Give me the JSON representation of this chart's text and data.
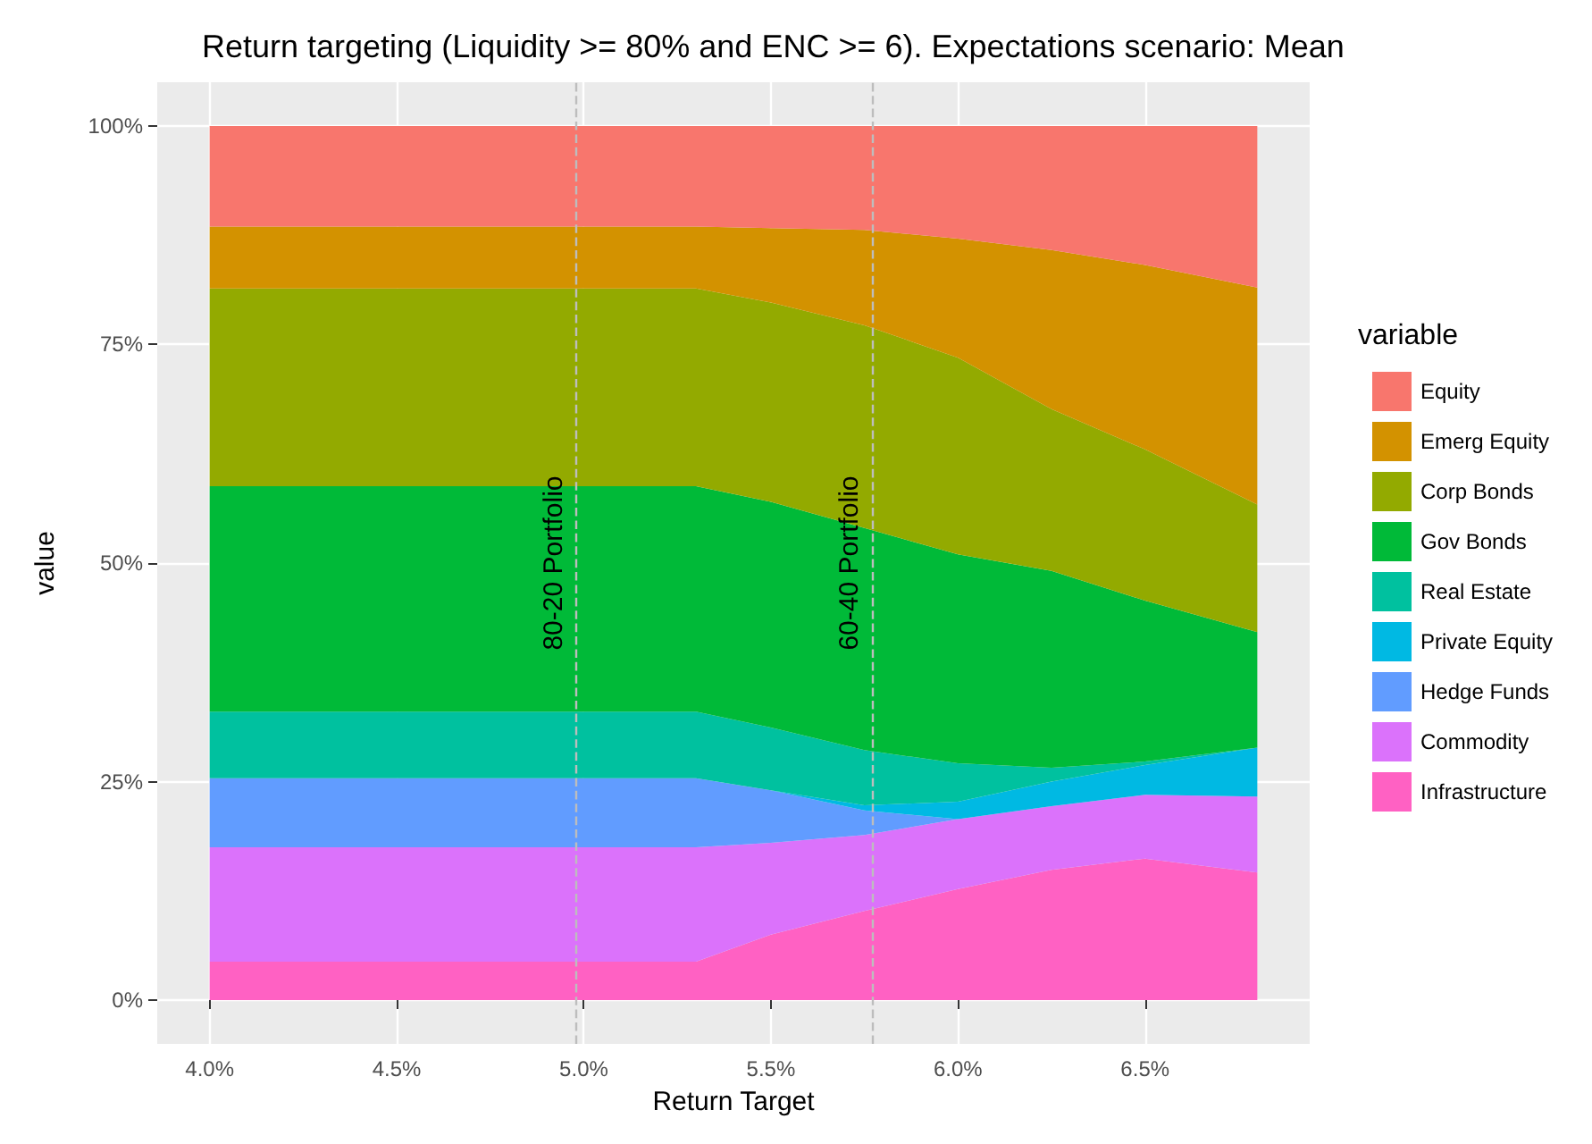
{
  "chart_data": {
    "type": "area",
    "stacked": true,
    "title": "Return targeting (Liquidity >= 80% and ENC >= 6). Expectations scenario: Mean",
    "xlabel": "Return Target",
    "ylabel": "value",
    "legend_title": "variable",
    "legend": "right",
    "grid": true,
    "x": [
      4.0,
      5.3,
      5.5,
      5.75,
      6.0,
      6.25,
      6.5,
      6.8
    ],
    "series": [
      {
        "name": "Infrastructure",
        "color": "#ff61c3",
        "values": [
          4.4,
          4.4,
          7.5,
          10.2,
          12.7,
          14.9,
          16.2,
          14.6
        ]
      },
      {
        "name": "Commodity",
        "color": "#db72fb",
        "values": [
          13.1,
          13.1,
          10.5,
          8.7,
          8.0,
          7.3,
          7.3,
          8.7
        ]
      },
      {
        "name": "Hedge Funds",
        "color": "#619cff",
        "values": [
          7.9,
          7.9,
          6.0,
          2.8,
          0,
          0,
          0,
          0
        ]
      },
      {
        "name": "Private Equity",
        "color": "#00b9e3",
        "values": [
          0,
          0,
          0,
          0.6,
          2.0,
          2.8,
          3.4,
          5.6
        ]
      },
      {
        "name": "Real Estate",
        "color": "#00c19f",
        "values": [
          7.6,
          7.6,
          7.2,
          6.3,
          4.4,
          1.6,
          0.4,
          0
        ]
      },
      {
        "name": "Gov Bonds",
        "color": "#00ba38",
        "values": [
          25.8,
          25.8,
          25.8,
          25.4,
          23.9,
          22.5,
          18.4,
          13.2
        ]
      },
      {
        "name": "Corp Bonds",
        "color": "#93aa00",
        "values": [
          22.6,
          22.6,
          22.8,
          23.2,
          22.5,
          18.5,
          17.3,
          14.6
        ]
      },
      {
        "name": "Emerg Equity",
        "color": "#d39200",
        "values": [
          7.1,
          7.1,
          8.5,
          10.9,
          13.6,
          18.2,
          21.1,
          24.8
        ]
      },
      {
        "name": "Equity",
        "color": "#f8766d",
        "values": [
          11.5,
          11.5,
          11.7,
          11.9,
          12.9,
          14.2,
          15.9,
          18.5
        ]
      }
    ],
    "xlim": [
      3.86,
      6.94
    ],
    "xticks": [
      {
        "value": 4.0,
        "label": "4.0%"
      },
      {
        "value": 4.5,
        "label": "4.5%"
      },
      {
        "value": 5.0,
        "label": "5.0%"
      },
      {
        "value": 5.5,
        "label": "5.5%"
      },
      {
        "value": 6.0,
        "label": "6.0%"
      },
      {
        "value": 6.5,
        "label": "6.5%"
      }
    ],
    "ylim": [
      -5,
      105
    ],
    "yticks": [
      {
        "value": 0,
        "label": "0%"
      },
      {
        "value": 25,
        "label": "25%"
      },
      {
        "value": 50,
        "label": "50%"
      },
      {
        "value": 75,
        "label": "75%"
      },
      {
        "value": 100,
        "label": "100%"
      }
    ],
    "ref_lines": [
      {
        "axis": "x",
        "value": 4.98,
        "label": "80-20 Portfolio",
        "color": "#bdbdbd",
        "line_style": "dashed"
      },
      {
        "axis": "x",
        "value": 5.77,
        "label": "60-40 Portfolio",
        "color": "#bdbdbd",
        "line_style": "dashed"
      }
    ]
  }
}
